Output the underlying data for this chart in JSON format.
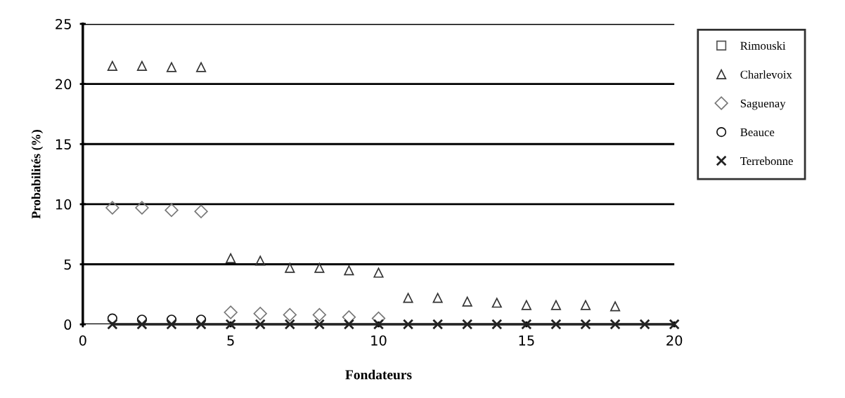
{
  "chart_data": {
    "type": "scatter",
    "xlabel": "Fondateurs",
    "ylabel": "Probabilités (%)",
    "x": [
      1,
      2,
      3,
      4,
      5,
      6,
      7,
      8,
      9,
      10,
      11,
      12,
      13,
      14,
      15,
      16,
      17,
      18,
      19,
      20
    ],
    "xlim": [
      0,
      20
    ],
    "xticks": [
      0,
      5,
      10,
      15,
      20
    ],
    "ylim": [
      0,
      25
    ],
    "yticks": [
      0,
      5,
      10,
      15,
      20,
      25
    ],
    "grid": "y",
    "legend": "right",
    "series": [
      {
        "name": "Rimouski",
        "color": "#555555",
        "marker": "square",
        "values": [
          null,
          null,
          null,
          null,
          null,
          null,
          null,
          null,
          null,
          null,
          null,
          null,
          null,
          null,
          null,
          null,
          null,
          null,
          null,
          null
        ]
      },
      {
        "name": "Charlevoix",
        "color": "#333333",
        "marker": "triangle",
        "values": [
          21.5,
          21.5,
          21.4,
          21.4,
          5.5,
          5.3,
          4.7,
          4.7,
          4.5,
          4.3,
          2.2,
          2.2,
          1.9,
          1.8,
          1.6,
          1.6,
          1.6,
          1.5,
          null,
          null
        ]
      },
      {
        "name": "Saguenay",
        "color": "#777777",
        "marker": "diamond",
        "values": [
          9.7,
          9.7,
          9.5,
          9.4,
          1.0,
          0.9,
          0.8,
          0.8,
          0.6,
          0.5,
          null,
          null,
          null,
          null,
          null,
          null,
          null,
          null,
          null,
          null
        ]
      },
      {
        "name": "Beauce",
        "color": "#111111",
        "marker": "circle",
        "values": [
          0.5,
          0.4,
          0.4,
          0.4,
          null,
          null,
          null,
          null,
          null,
          null,
          null,
          null,
          null,
          null,
          null,
          null,
          null,
          null,
          null,
          null
        ]
      },
      {
        "name": "Terrebonne",
        "color": "#222222",
        "type": "line",
        "marker": "cross",
        "line_style": "solid",
        "values": [
          0,
          0,
          0,
          0,
          0,
          0,
          0,
          0,
          0,
          0,
          0,
          0,
          0,
          0,
          0,
          0,
          0,
          0,
          0,
          0
        ]
      }
    ]
  }
}
